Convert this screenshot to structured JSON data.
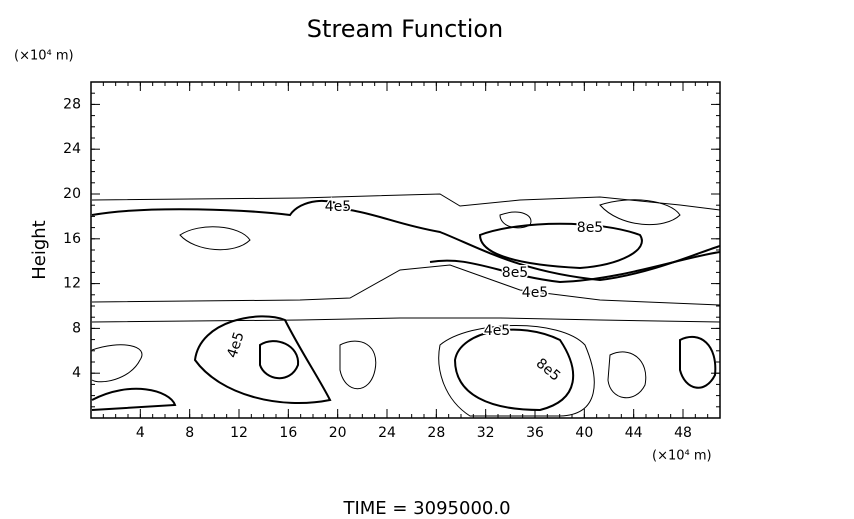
{
  "chart_data": {
    "type": "contour",
    "title": "Stream Function",
    "y_label": "Height",
    "y_unit": "(×10⁴ m)",
    "x_unit": "(×10⁴ m)",
    "xlim": [
      0,
      51
    ],
    "xticks": [
      4,
      8,
      12,
      16,
      20,
      24,
      28,
      32,
      36,
      40,
      44,
      48
    ],
    "ylim": [
      0,
      30
    ],
    "yticks": [
      4,
      8,
      12,
      16,
      20,
      24,
      28
    ],
    "contour_levels": [
      {
        "value": 400000,
        "label": "4e5"
      },
      {
        "value": 800000,
        "label": "8e5"
      }
    ],
    "footer": "TIME  =  3095000.0"
  }
}
